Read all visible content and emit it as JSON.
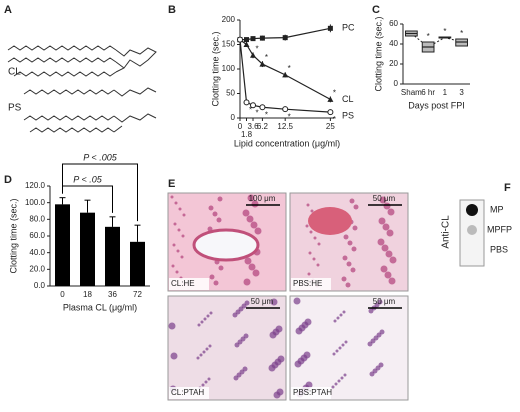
{
  "panels": [
    "A",
    "B",
    "C",
    "D",
    "E",
    "F"
  ],
  "structures": {
    "labels": [
      "CL",
      "PS"
    ]
  },
  "chart_data": [
    {
      "type": "line",
      "xlabel": "Lipid concentration (μg/ml)",
      "ylabel": "Clotting time (sec.)",
      "x": [
        0,
        1.8,
        3.6,
        6.2,
        12.5,
        25
      ],
      "xlim": [
        0,
        26
      ],
      "xticks": [
        0,
        1.8,
        3.6,
        6.2,
        12.5,
        25
      ],
      "ylim": [
        0,
        200
      ],
      "yticks": [
        0,
        50,
        100,
        150,
        200
      ],
      "series": [
        {
          "name": "PC",
          "color": "#222222",
          "marker": "square",
          "values": [
            160,
            160,
            162,
            163,
            164,
            183
          ],
          "errors": [
            3,
            3,
            4,
            5,
            6,
            8
          ],
          "significance": [
            null,
            null,
            null,
            null,
            null,
            null
          ]
        },
        {
          "name": "CL",
          "color": "#222222",
          "marker": "triangle",
          "values": [
            160,
            150,
            128,
            110,
            88,
            38
          ],
          "errors": [
            3,
            5,
            6,
            6,
            5,
            6
          ],
          "significance": [
            null,
            null,
            "*",
            "*",
            "*",
            "*"
          ]
        },
        {
          "name": "PS",
          "color": "#222222",
          "marker": "circle",
          "values": [
            160,
            32,
            26,
            22,
            18,
            12
          ],
          "errors": [
            3,
            4,
            4,
            4,
            3,
            3
          ],
          "significance": [
            null,
            "*",
            "*",
            "*",
            "*",
            "*"
          ]
        }
      ]
    },
    {
      "type": "box",
      "xlabel": "Days post FPI",
      "ylabel": "Clotting time (sec.)",
      "categories": [
        "Sham",
        "6 hr",
        "1",
        "3"
      ],
      "ylim": [
        0,
        60
      ],
      "yticks": [
        0,
        20,
        40,
        60
      ],
      "q1": [
        48,
        32,
        46,
        38
      ],
      "median": [
        50.5,
        37,
        46.5,
        42
      ],
      "q3": [
        53,
        42,
        47,
        45
      ],
      "color": "#bbbbbb",
      "significance": [
        null,
        "*",
        "*",
        "*"
      ]
    },
    {
      "type": "bar",
      "xlabel": "Plasma CL (μg/ml)",
      "ylabel": "Clotting time (sec.)",
      "categories": [
        "0",
        "18",
        "36",
        "72"
      ],
      "values": [
        98,
        88,
        71,
        53
      ],
      "errors": [
        8,
        15,
        12,
        20
      ],
      "color": "#000000",
      "ylim": [
        0,
        120
      ],
      "yticks": [
        {
          "value": 0,
          "label": "0.0"
        },
        {
          "value": 20,
          "label": "20.0"
        },
        {
          "value": 40,
          "label": "40.0"
        },
        {
          "value": 60,
          "label": "60.0"
        },
        {
          "value": 80,
          "label": "80.0"
        },
        {
          "value": 100,
          "label": "100.0"
        },
        {
          "value": 120,
          "label": "120.0"
        }
      ],
      "comparisons": [
        {
          "label": "P < .005",
          "between": [
            "0",
            "72"
          ]
        },
        {
          "label": "P < .05",
          "between": [
            "0",
            "36"
          ]
        }
      ]
    }
  ],
  "histology": {
    "scale_bars": [
      "100 μm",
      "50 μm",
      "50 μm",
      "50 μm"
    ],
    "labels": [
      "CL:HE",
      "PBS:HE",
      "CL:PTAH",
      "PBS:PTAH"
    ]
  },
  "blot": {
    "title": "Anti-CL",
    "labels": [
      "MP",
      "MPFP",
      "PBS"
    ]
  }
}
